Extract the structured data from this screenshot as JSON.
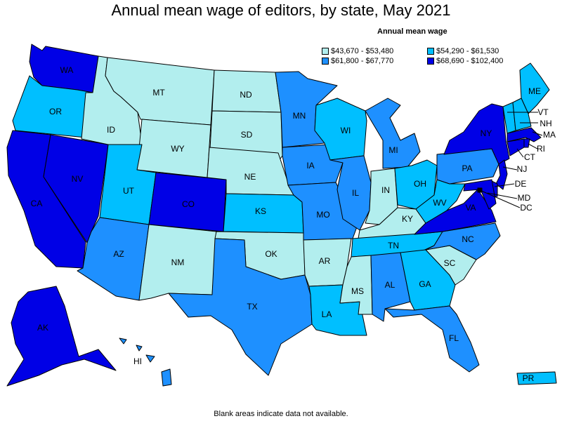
{
  "title": "Annual mean wage of editors, by state, May 2021",
  "footnote": "Blank areas indicate data not available.",
  "legend": {
    "title": "Annual mean wage",
    "items": [
      {
        "label": "$43,670 - $53,480",
        "color": "#b2eeee"
      },
      {
        "label": "$54,290 - $61,530",
        "color": "#00bfff"
      },
      {
        "label": "$61,800 - $67,770",
        "color": "#1e90ff"
      },
      {
        "label": "$68,690 - $102,400",
        "color": "#0000e6"
      }
    ]
  },
  "states": [
    {
      "abbr": "WA",
      "tier": 3
    },
    {
      "abbr": "OR",
      "tier": 1
    },
    {
      "abbr": "CA",
      "tier": 3
    },
    {
      "abbr": "NV",
      "tier": 3
    },
    {
      "abbr": "ID",
      "tier": 0
    },
    {
      "abbr": "MT",
      "tier": 0
    },
    {
      "abbr": "WY",
      "tier": 0
    },
    {
      "abbr": "UT",
      "tier": 1
    },
    {
      "abbr": "AZ",
      "tier": 2
    },
    {
      "abbr": "CO",
      "tier": 3
    },
    {
      "abbr": "NM",
      "tier": 0
    },
    {
      "abbr": "ND",
      "tier": 0
    },
    {
      "abbr": "SD",
      "tier": 0
    },
    {
      "abbr": "NE",
      "tier": 0
    },
    {
      "abbr": "KS",
      "tier": 1
    },
    {
      "abbr": "OK",
      "tier": 0
    },
    {
      "abbr": "TX",
      "tier": 2
    },
    {
      "abbr": "MN",
      "tier": 2
    },
    {
      "abbr": "IA",
      "tier": 2
    },
    {
      "abbr": "MO",
      "tier": 2
    },
    {
      "abbr": "AR",
      "tier": 0
    },
    {
      "abbr": "LA",
      "tier": 1
    },
    {
      "abbr": "WI",
      "tier": 1
    },
    {
      "abbr": "IL",
      "tier": 2
    },
    {
      "abbr": "MI",
      "tier": 2
    },
    {
      "abbr": "IN",
      "tier": 0
    },
    {
      "abbr": "OH",
      "tier": 1
    },
    {
      "abbr": "KY",
      "tier": 0
    },
    {
      "abbr": "TN",
      "tier": 1
    },
    {
      "abbr": "MS",
      "tier": 0
    },
    {
      "abbr": "AL",
      "tier": 2
    },
    {
      "abbr": "GA",
      "tier": 1
    },
    {
      "abbr": "FL",
      "tier": 2
    },
    {
      "abbr": "SC",
      "tier": 0
    },
    {
      "abbr": "NC",
      "tier": 2
    },
    {
      "abbr": "VA",
      "tier": 3
    },
    {
      "abbr": "WV",
      "tier": 1
    },
    {
      "abbr": "PA",
      "tier": 2
    },
    {
      "abbr": "NY",
      "tier": 3
    },
    {
      "abbr": "ME",
      "tier": 1
    },
    {
      "abbr": "VT",
      "tier": 1
    },
    {
      "abbr": "NH",
      "tier": 1
    },
    {
      "abbr": "MA",
      "tier": 3
    },
    {
      "abbr": "RI",
      "tier": 3
    },
    {
      "abbr": "CT",
      "tier": 3
    },
    {
      "abbr": "NJ",
      "tier": 3
    },
    {
      "abbr": "DE",
      "tier": 3
    },
    {
      "abbr": "MD",
      "tier": 3
    },
    {
      "abbr": "DC",
      "tier": 3
    },
    {
      "abbr": "AK",
      "tier": 3
    },
    {
      "abbr": "HI",
      "tier": 2
    },
    {
      "abbr": "PR",
      "tier": 1
    }
  ]
}
